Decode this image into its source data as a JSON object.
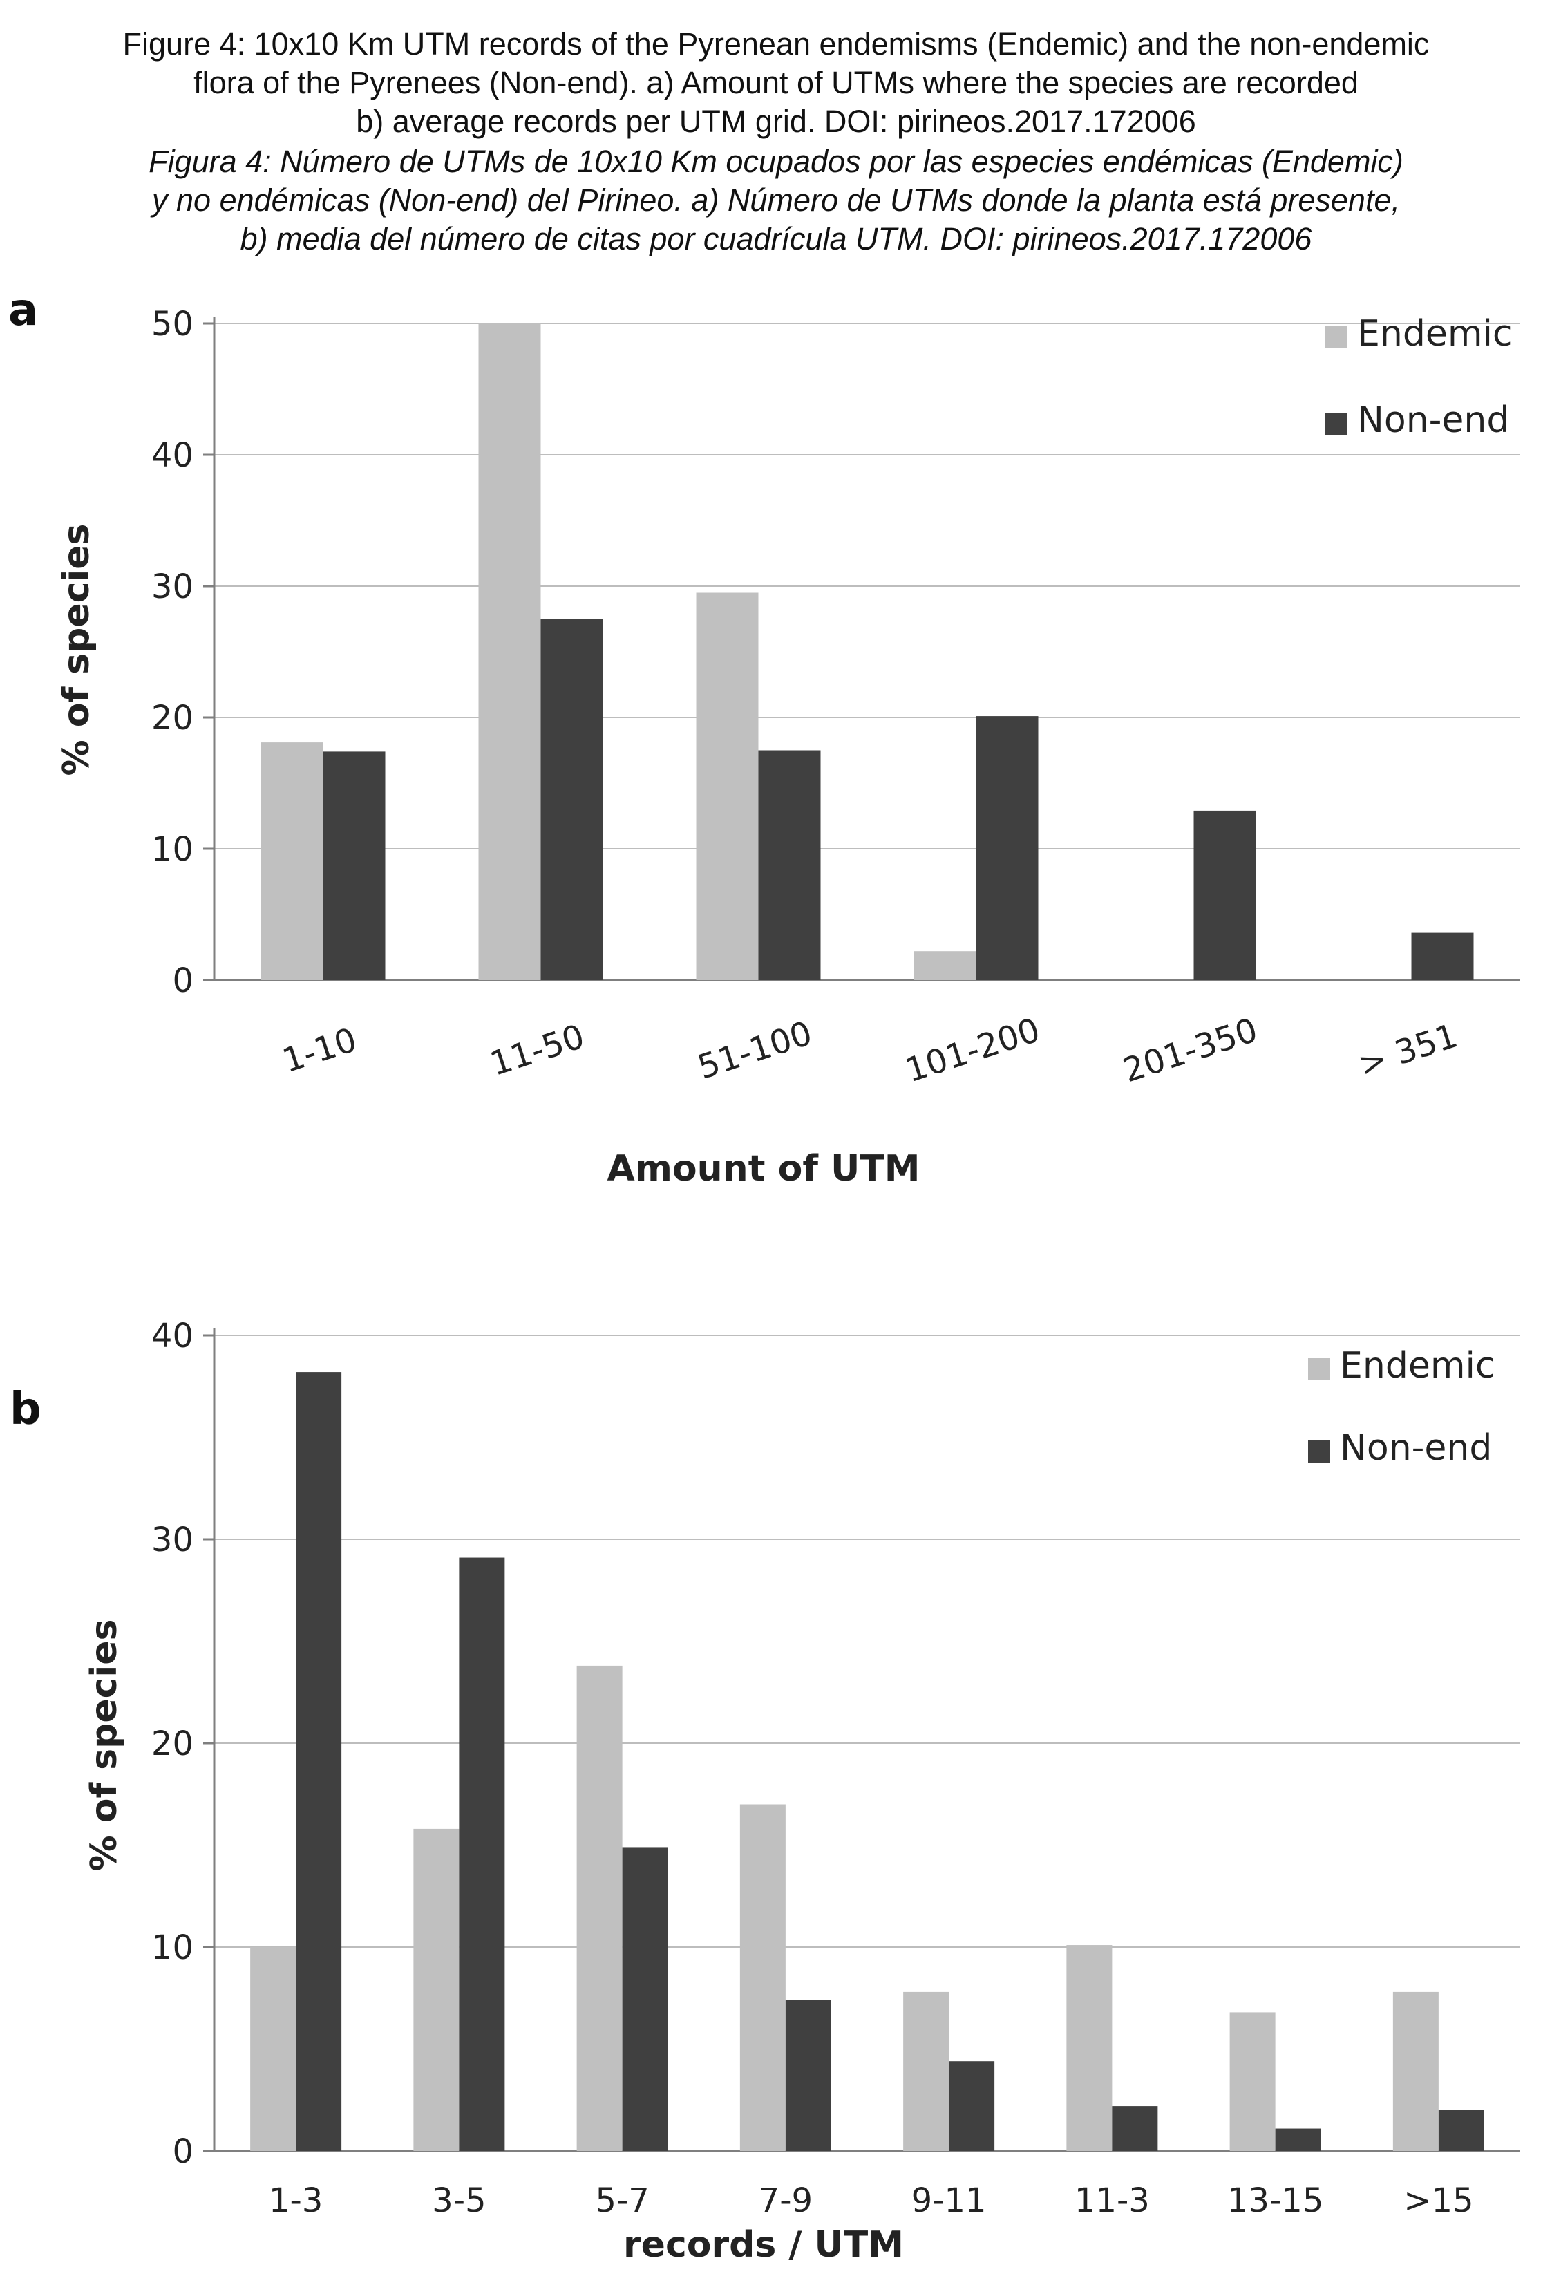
{
  "caption": {
    "english": [
      "Figure 4: 10x10 Km UTM records of the Pyrenean endemisms (Endemic) and the non-endemic",
      "flora of the Pyrenees (Non-end). a) Amount of UTMs where the species are recorded",
      "b) average records per UTM grid. DOI: pirineos.2017.172006"
    ],
    "spanish": [
      "Figura 4: Número de UTMs de 10x10 Km ocupados por las especies endémicas (Endemic)",
      "y no endémicas (Non-end) del Pirineo. a) Número de UTMs donde la planta está presente,",
      "b) media del número de citas por cuadrícula UTM. DOI: pirineos.2017.172006"
    ]
  },
  "colors": {
    "endemic": "#c0c0c0",
    "nonend": "#404040",
    "grid": "#bdbdbd",
    "axis": "#7f7f7f"
  },
  "chart_data": [
    {
      "type": "bar",
      "panel_label": "a",
      "title": "",
      "xlabel": "Amount of UTM",
      "ylabel": "% of species",
      "categories": [
        "1-10",
        "11-50",
        "51-100",
        "101-200",
        "201-350",
        "> 351"
      ],
      "series": [
        {
          "name": "Endemic",
          "values": [
            18.1,
            50.0,
            29.5,
            2.2,
            0,
            0
          ]
        },
        {
          "name": "Non-end",
          "values": [
            17.4,
            27.5,
            17.5,
            20.1,
            12.9,
            3.6
          ]
        }
      ],
      "ylim": [
        0,
        50
      ],
      "yticks": [
        0,
        10,
        20,
        30,
        40,
        50
      ],
      "grid": true,
      "legend_position": "top-right"
    },
    {
      "type": "bar",
      "panel_label": "b",
      "title": "",
      "xlabel": "records / UTM",
      "ylabel": "% of species",
      "categories": [
        "1-3",
        "3-5",
        "5-7",
        "7-9",
        "9-11",
        "11-3",
        "13-15",
        ">15"
      ],
      "series": [
        {
          "name": "Endemic",
          "values": [
            10.0,
            15.8,
            23.8,
            17.0,
            7.8,
            10.1,
            6.8,
            7.8
          ]
        },
        {
          "name": "Non-end",
          "values": [
            38.2,
            29.1,
            14.9,
            7.4,
            4.4,
            2.2,
            1.1,
            2.0
          ]
        }
      ],
      "ylim": [
        0,
        40
      ],
      "yticks": [
        0,
        10,
        20,
        30,
        40
      ],
      "grid": true,
      "legend_position": "top-right"
    }
  ]
}
